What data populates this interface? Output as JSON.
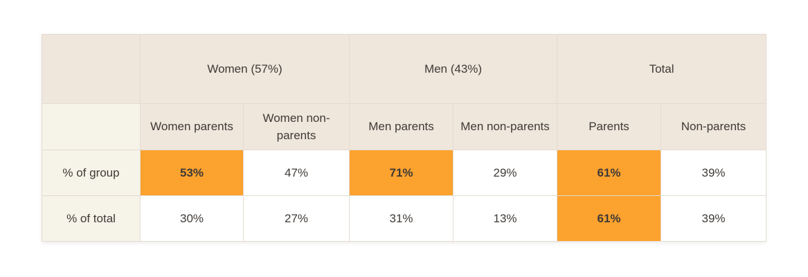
{
  "colors": {
    "highlight": "#fca22e",
    "header_bg": "#efe6dc",
    "row_label_bg": "#f6f3e9",
    "cell_bg": "#ffffff",
    "border": "#e3dcd2",
    "text": "#3f3a36"
  },
  "chart_data": {
    "type": "table",
    "groups": [
      {
        "label": "Women (57%)",
        "span": 2
      },
      {
        "label": "Men (43%)",
        "span": 2
      },
      {
        "label": "Total",
        "span": 2
      }
    ],
    "columns": [
      "Women parents",
      "Women non-parents",
      "Men parents",
      "Men non-parents",
      "Parents",
      "Non-parents"
    ],
    "rows": [
      {
        "label": "% of group",
        "values": [
          "53%",
          "47%",
          "71%",
          "29%",
          "61%",
          "39%"
        ],
        "highlight": [
          true,
          false,
          true,
          false,
          true,
          false
        ]
      },
      {
        "label": "% of total",
        "values": [
          "30%",
          "27%",
          "31%",
          "13%",
          "61%",
          "39%"
        ],
        "highlight": [
          false,
          false,
          false,
          false,
          true,
          false
        ]
      }
    ]
  }
}
